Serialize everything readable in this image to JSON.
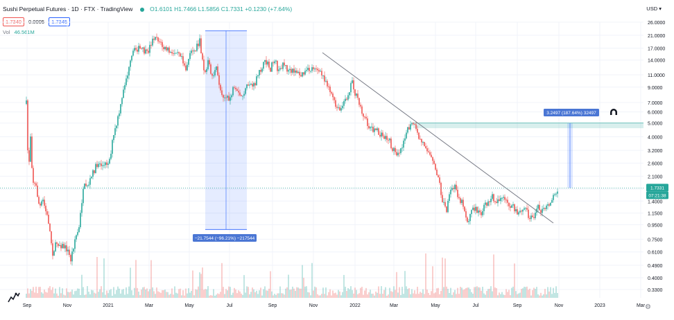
{
  "header": {
    "symbol": "Sushi Perpetual Futures · 1D · FTX · TradingView",
    "ohlc": "O1.6101  H1.7466  L1.5856  C1.7331  +0.1230 (+7.64%)",
    "bid": "1.7340",
    "spread": "0.0005",
    "ask": "1.7345",
    "vol_label": "Vol",
    "vol_value": "46.561M",
    "currency": "USD"
  },
  "chart_data": {
    "type": "candlestick",
    "y_scale": "log",
    "y_ticks": [
      "26.0000",
      "21.0000",
      "17.0000",
      "14.0000",
      "11.0000",
      "9.0000",
      "7.0000",
      "6.0000",
      "5.0000",
      "4.0000",
      "3.2000",
      "2.6000",
      "2.1000",
      "1.7000",
      "1.4000",
      "1.1500",
      "0.9500",
      "0.7500",
      "0.6100",
      "0.4900",
      "0.4000",
      "0.3300"
    ],
    "x_labels": [
      "Sep",
      "Nov",
      "2021",
      "Mar",
      "May",
      "Jul",
      "Sep",
      "Nov",
      "2022",
      "Mar",
      "May",
      "Jul",
      "Sep",
      "Nov",
      "2023",
      "Mar"
    ],
    "last_price": "1.7331",
    "countdown": "07:21:38",
    "annotations": {
      "drop_box": "−21.7544 (−96.21%) −217544",
      "rise_box": "3.2497 (187.64%) 32497"
    }
  },
  "colors": {
    "up": "#26a69a",
    "down": "#ef5350",
    "range": "#2962ff",
    "trend": "#787b86"
  }
}
